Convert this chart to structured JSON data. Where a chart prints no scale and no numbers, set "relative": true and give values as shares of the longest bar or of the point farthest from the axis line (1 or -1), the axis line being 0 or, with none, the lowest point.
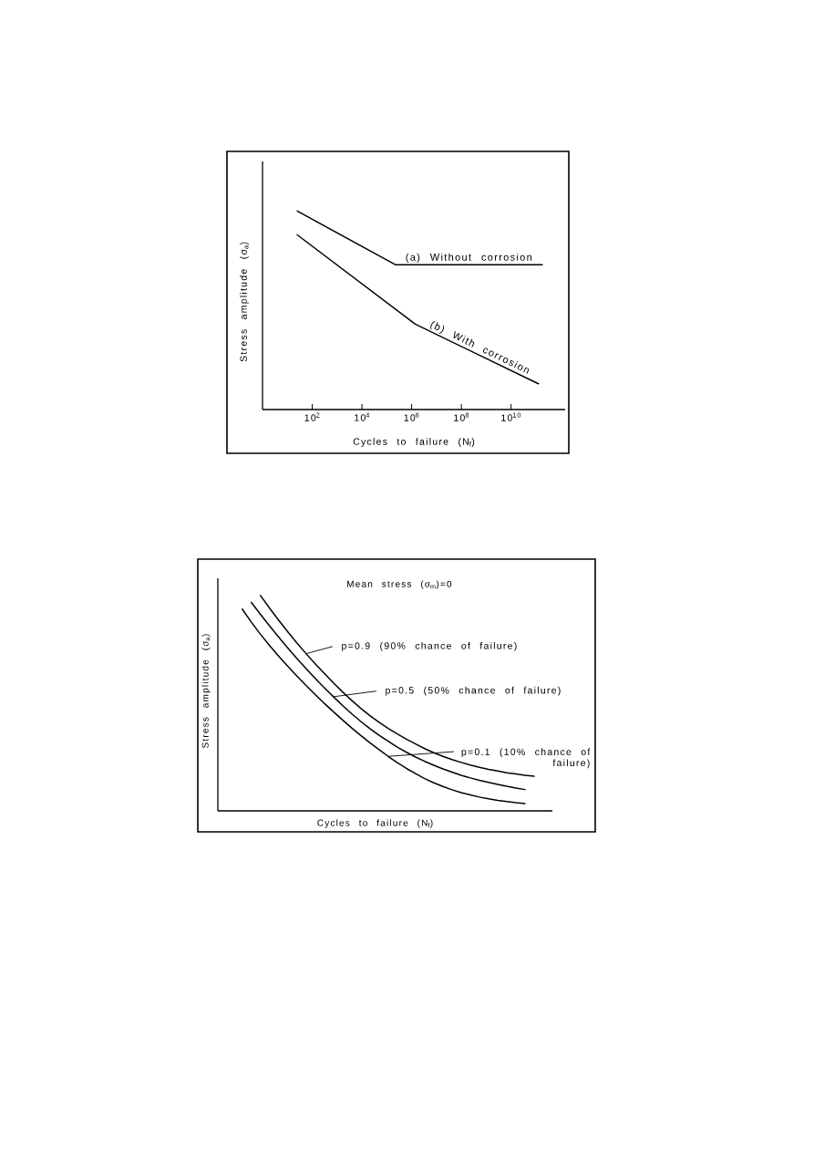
{
  "chart_data": [
    {
      "type": "line",
      "xlabel": "Cycles to failure (N$_{f}$)",
      "ylabel": "Stress amplitude (σ$_{a}$)",
      "log": "x",
      "relative": true,
      "xlim": [
        1,
        1500000000000.0
      ],
      "xticks": [
        {
          "value": 100,
          "label": "10$^{2}$"
        },
        {
          "value": 10000,
          "label": "10$^{4}$"
        },
        {
          "value": 1000000,
          "label": "10$^{6}$"
        },
        {
          "value": 100000000,
          "label": "10$^{8}$"
        },
        {
          "value": 10000000000,
          "label": "10$^{10}$"
        }
      ],
      "marker": "none",
      "line_style": "solid",
      "series": [
        {
          "name": "(a) Without corrosion",
          "color": "#000000",
          "x": [
            25,
            220000,
            180000000000.0
          ],
          "values": [
            1,
            0.73,
            0.73
          ]
        },
        {
          "name": "(b) With corrosion",
          "color": "#000000",
          "x": [
            25,
            1400000,
            126000000000.0
          ],
          "values": [
            0.88,
            0.43,
            0.13
          ]
        }
      ]
    },
    {
      "type": "line",
      "xlabel": "Cycles to failure (N$_{f}$)",
      "ylabel": "Stress amplitude (σ$_{a}$)",
      "annotations": [
        "Mean stress (σ$_{m}$)=0",
        "p=0.9 (90% chance of failure)",
        "p=0.5 (50% chance of failure)",
        "p=0.1 (10% chance of failure)"
      ],
      "relative": true,
      "categories": [
        null,
        null,
        null,
        null,
        null,
        null,
        null,
        null,
        null,
        null,
        null,
        null,
        null,
        null,
        null,
        null,
        null,
        null,
        null,
        null,
        null,
        null,
        null,
        null,
        null,
        null,
        null,
        null,
        null,
        null,
        null,
        null,
        null
      ],
      "marker": "none",
      "line_style": "solid",
      "series": [
        {
          "color": "#000000",
          "values": [
            null,
            null,
            1,
            0.941,
            0.885,
            0.831,
            0.779,
            0.73,
            0.683,
            0.638,
            0.594,
            0.552,
            0.513,
            0.476,
            0.442,
            0.411,
            0.383,
            0.357,
            0.333,
            0.311,
            0.289,
            0.27,
            0.253,
            0.238,
            0.225,
            0.213,
            0.202,
            0.193,
            0.185,
            0.177,
            0.171,
            0.165,
            0.161
          ]
        },
        {
          "color": "#000000",
          "values": [
            null,
            0.968,
            0.913,
            0.859,
            0.807,
            0.756,
            0.707,
            0.661,
            0.615,
            0.572,
            0.53,
            0.489,
            0.451,
            0.415,
            0.382,
            0.351,
            0.323,
            0.296,
            0.272,
            0.25,
            0.23,
            0.212,
            0.195,
            0.18,
            0.165,
            0.153,
            0.142,
            0.132,
            0.123,
            0.114,
            0.106,
            0.099,
            null
          ]
        },
        {
          "color": "#000000",
          "values": [
            0.937,
            0.876,
            0.82,
            0.768,
            0.718,
            0.671,
            0.626,
            0.582,
            0.54,
            0.499,
            0.46,
            0.422,
            0.385,
            0.35,
            0.316,
            0.284,
            0.253,
            0.224,
            0.197,
            0.173,
            0.15,
            0.13,
            0.113,
            0.098,
            0.085,
            0.074,
            0.064,
            0.056,
            0.049,
            0.043,
            0.038,
            0.034,
            null
          ]
        }
      ]
    }
  ]
}
